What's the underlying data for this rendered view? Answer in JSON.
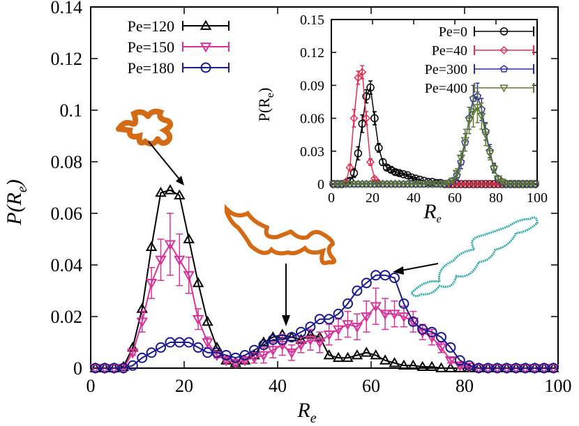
{
  "main": {
    "xlabel": "R",
    "xlabel_sub": "e",
    "ylabel_main": "P(R",
    "ylabel_sub": "e",
    "ylabel_close": ")"
  },
  "inset": {
    "xlabel": "R",
    "xlabel_sub": "e",
    "ylabel_main": "P(R",
    "ylabel_sub": "e",
    "ylabel_close": ")"
  },
  "chart_data": [
    {
      "type": "line",
      "title": "",
      "xlabel": "Re",
      "ylabel": "P(Re)",
      "xlim": [
        0,
        100
      ],
      "ylim": [
        0,
        0.14
      ],
      "xticks": [
        "0",
        "20",
        "40",
        "60",
        "80",
        "100"
      ],
      "yticks": [
        "0",
        "0.02",
        "0.04",
        "0.06",
        "0.08",
        "0.1",
        "0.12",
        "0.14"
      ],
      "legend_position": "top-left",
      "series": [
        {
          "name": "Pe=120",
          "color": "#000000",
          "marker": "triangle-up",
          "x": [
            1,
            3,
            5,
            7,
            9,
            11,
            13,
            15,
            17,
            19,
            21,
            23,
            25,
            27,
            29,
            31,
            33,
            35,
            37,
            39,
            41,
            43,
            45,
            47,
            49,
            51,
            53,
            55,
            57,
            59,
            61,
            63,
            65,
            67,
            69,
            71,
            73,
            75,
            77,
            79,
            81,
            83,
            85,
            87,
            89,
            91,
            93,
            95,
            97,
            99
          ],
          "y": [
            0,
            0,
            0,
            0.0005,
            0.008,
            0.023,
            0.047,
            0.068,
            0.069,
            0.067,
            0.05,
            0.033,
            0.018,
            0.008,
            0.003,
            0.002,
            0.003,
            0.005,
            0.01,
            0.012,
            0.013,
            0.012,
            0.011,
            0.013,
            0.012,
            0.005,
            0.004,
            0.004,
            0.005,
            0.006,
            0.005,
            0.003,
            0.002,
            0.001,
            0.001,
            0.0005,
            0.0005,
            0,
            0,
            0,
            0,
            0,
            0,
            0,
            0,
            0,
            0,
            0,
            0,
            0
          ]
        },
        {
          "name": "Pe=150",
          "color": "#d6339a",
          "marker": "triangle-down",
          "x": [
            1,
            3,
            5,
            7,
            9,
            11,
            13,
            15,
            17,
            19,
            21,
            23,
            25,
            27,
            29,
            31,
            33,
            35,
            37,
            39,
            41,
            43,
            45,
            47,
            49,
            51,
            53,
            55,
            57,
            59,
            61,
            63,
            65,
            67,
            69,
            71,
            73,
            75,
            77,
            79,
            81,
            83,
            85,
            87,
            89,
            91,
            93,
            95,
            97,
            99
          ],
          "y": [
            0,
            0,
            0,
            0,
            0.006,
            0.018,
            0.033,
            0.042,
            0.048,
            0.042,
            0.036,
            0.019,
            0.01,
            0.005,
            0.003,
            0.002,
            0.003,
            0.004,
            0.005,
            0.007,
            0.009,
            0.006,
            0.009,
            0.011,
            0.01,
            0.013,
            0.015,
            0.017,
            0.016,
            0.02,
            0.024,
            0.021,
            0.021,
            0.02,
            0.018,
            0.014,
            0.012,
            0.008,
            0.003,
            0.001,
            0.0005,
            0,
            0,
            0,
            0,
            0,
            0,
            0,
            0,
            0
          ],
          "yerr": [
            0,
            0,
            0,
            0,
            0.001,
            0.004,
            0.006,
            0.008,
            0.012,
            0.01,
            0.007,
            0.004,
            0.002,
            0.001,
            0.001,
            0.001,
            0.001,
            0.002,
            0.003,
            0.003,
            0.004,
            0.003,
            0.003,
            0.004,
            0.004,
            0.004,
            0.004,
            0.005,
            0.005,
            0.006,
            0.007,
            0.006,
            0.005,
            0.004,
            0.004,
            0.003,
            0.003,
            0.002,
            0.001,
            0.001,
            0,
            0,
            0,
            0,
            0,
            0,
            0,
            0,
            0,
            0
          ]
        },
        {
          "name": "Pe=180",
          "color": "#1a1a8c",
          "marker": "circle",
          "x": [
            1,
            3,
            5,
            7,
            9,
            11,
            13,
            15,
            17,
            19,
            21,
            23,
            25,
            27,
            29,
            31,
            33,
            35,
            37,
            39,
            41,
            43,
            45,
            47,
            49,
            51,
            53,
            55,
            57,
            59,
            61,
            63,
            65,
            67,
            69,
            71,
            73,
            75,
            77,
            79,
            81,
            83,
            85,
            87,
            89,
            91,
            93,
            95,
            97,
            99
          ],
          "y": [
            0,
            0,
            0,
            0,
            0.001,
            0.004,
            0.006,
            0.008,
            0.01,
            0.01,
            0.01,
            0.008,
            0.006,
            0.006,
            0.005,
            0.004,
            0.005,
            0.007,
            0.009,
            0.011,
            0.011,
            0.012,
            0.014,
            0.016,
            0.019,
            0.019,
            0.021,
            0.025,
            0.03,
            0.033,
            0.036,
            0.036,
            0.035,
            0.025,
            0.018,
            0.015,
            0.014,
            0.012,
            0.008,
            0.003,
            0.001,
            0,
            0,
            0,
            0,
            0,
            0,
            0,
            0,
            0
          ]
        }
      ]
    },
    {
      "type": "line",
      "title": "",
      "xlabel": "Re",
      "ylabel": "P(Re)",
      "xlim": [
        0,
        100
      ],
      "ylim": [
        0,
        0.15
      ],
      "xticks": [
        "0",
        "20",
        "40",
        "60",
        "80",
        "100"
      ],
      "yticks": [
        "0",
        "0.03",
        "0.06",
        "0.09",
        "0.12",
        "0.15"
      ],
      "legend_position": "top-right",
      "series": [
        {
          "name": "Pe=0",
          "color": "#000000",
          "marker": "circle",
          "x": [
            1,
            3,
            5,
            7,
            9,
            11,
            13,
            15,
            17,
            19,
            21,
            23,
            25,
            27,
            29,
            31,
            33,
            35,
            37,
            39,
            41,
            43,
            45,
            47,
            49,
            51,
            53,
            55,
            57,
            59,
            61,
            63,
            65,
            67,
            69,
            71,
            73,
            75,
            77,
            79,
            81,
            83,
            85,
            87,
            89,
            91,
            93,
            95,
            97,
            99
          ],
          "y": [
            0,
            0,
            0,
            0.001,
            0.003,
            0.01,
            0.028,
            0.055,
            0.08,
            0.088,
            0.06,
            0.033,
            0.02,
            0.015,
            0.013,
            0.011,
            0.01,
            0.009,
            0.008,
            0.006,
            0.005,
            0.004,
            0.003,
            0.002,
            0.002,
            0.001,
            0.001,
            0,
            0,
            0,
            0,
            0,
            0,
            0,
            0,
            0,
            0,
            0,
            0,
            0,
            0,
            0,
            0,
            0,
            0,
            0,
            0,
            0,
            0,
            0
          ],
          "yerr": [
            0,
            0,
            0,
            0,
            0.002,
            0.004,
            0.006,
            0.008,
            0.006,
            0.006,
            0.006,
            0.004,
            0.003,
            0.002,
            0.002,
            0.002,
            0.002,
            0.001,
            0.001,
            0.001,
            0.001,
            0,
            0,
            0,
            0,
            0,
            0,
            0,
            0,
            0,
            0,
            0,
            0,
            0,
            0,
            0,
            0,
            0,
            0,
            0,
            0,
            0,
            0,
            0,
            0,
            0,
            0,
            0,
            0,
            0
          ]
        },
        {
          "name": "Pe=40",
          "color": "#e0304f",
          "marker": "diamond",
          "x": [
            1,
            3,
            5,
            7,
            9,
            11,
            13,
            15,
            17,
            19,
            21,
            23,
            25,
            27,
            29,
            31,
            33,
            35,
            37,
            39,
            41,
            43,
            45,
            47,
            49,
            51,
            53,
            55,
            57,
            59,
            61,
            63,
            65,
            67,
            69,
            71,
            73,
            75,
            77,
            79,
            81,
            83,
            85,
            87,
            89,
            91,
            93,
            95,
            97,
            99
          ],
          "y": [
            0,
            0,
            0,
            0.002,
            0.015,
            0.06,
            0.097,
            0.102,
            0.06,
            0.02,
            0.005,
            0.001,
            0,
            0,
            0,
            0,
            0,
            0,
            0,
            0,
            0,
            0,
            0,
            0,
            0,
            0,
            0,
            0,
            0,
            0,
            0,
            0,
            0,
            0,
            0,
            0,
            0,
            0,
            0,
            0,
            0,
            0,
            0,
            0,
            0,
            0,
            0,
            0,
            0,
            0
          ],
          "yerr": [
            0,
            0,
            0,
            0,
            0.003,
            0.008,
            0.006,
            0.006,
            0.006,
            0.003,
            0.001,
            0,
            0,
            0,
            0,
            0,
            0,
            0,
            0,
            0,
            0,
            0,
            0,
            0,
            0,
            0,
            0,
            0,
            0,
            0,
            0,
            0,
            0,
            0,
            0,
            0,
            0,
            0,
            0,
            0,
            0,
            0,
            0,
            0,
            0,
            0,
            0,
            0,
            0,
            0
          ]
        },
        {
          "name": "Pe=300",
          "color": "#2d2d9e",
          "marker": "pentagon",
          "x": [
            1,
            3,
            5,
            7,
            9,
            11,
            13,
            15,
            17,
            19,
            21,
            23,
            25,
            27,
            29,
            31,
            33,
            35,
            37,
            39,
            41,
            43,
            45,
            47,
            49,
            51,
            53,
            55,
            57,
            59,
            61,
            63,
            65,
            67,
            69,
            71,
            73,
            75,
            77,
            79,
            81,
            83,
            85,
            87,
            89,
            91,
            93,
            95,
            97,
            99
          ],
          "y": [
            0,
            0,
            0,
            0,
            0,
            0,
            0,
            0,
            0,
            0,
            0,
            0,
            0,
            0,
            0,
            0,
            0,
            0,
            0,
            0,
            0,
            0,
            0,
            0,
            0,
            0,
            0,
            0,
            0.001,
            0.003,
            0.008,
            0.02,
            0.038,
            0.06,
            0.078,
            0.08,
            0.068,
            0.048,
            0.03,
            0.015,
            0.005,
            0.002,
            0,
            0,
            0,
            0,
            0,
            0,
            0,
            0
          ],
          "yerr": [
            0,
            0,
            0,
            0,
            0,
            0,
            0,
            0,
            0,
            0,
            0,
            0,
            0,
            0,
            0,
            0,
            0,
            0,
            0,
            0,
            0,
            0,
            0,
            0,
            0,
            0,
            0,
            0,
            0,
            0.002,
            0.004,
            0.006,
            0.008,
            0.01,
            0.012,
            0.012,
            0.01,
            0.008,
            0.006,
            0.004,
            0.002,
            0.001,
            0,
            0,
            0,
            0,
            0,
            0,
            0,
            0
          ]
        },
        {
          "name": "Pe=400",
          "color": "#5e7a32",
          "marker": "triangle-down",
          "x": [
            1,
            3,
            5,
            7,
            9,
            11,
            13,
            15,
            17,
            19,
            21,
            23,
            25,
            27,
            29,
            31,
            33,
            35,
            37,
            39,
            41,
            43,
            45,
            47,
            49,
            51,
            53,
            55,
            57,
            59,
            61,
            63,
            65,
            67,
            69,
            71,
            73,
            75,
            77,
            79,
            81,
            83,
            85,
            87,
            89,
            91,
            93,
            95,
            97,
            99
          ],
          "y": [
            0,
            0,
            0,
            0,
            0,
            0,
            0,
            0,
            0,
            0,
            0,
            0,
            0,
            0,
            0,
            0,
            0,
            0,
            0,
            0,
            0,
            0,
            0,
            0,
            0,
            0,
            0,
            0,
            0.001,
            0.003,
            0.01,
            0.024,
            0.04,
            0.058,
            0.066,
            0.07,
            0.062,
            0.045,
            0.028,
            0.014,
            0.005,
            0.002,
            0,
            0,
            0,
            0,
            0,
            0,
            0,
            0
          ],
          "yerr": [
            0,
            0,
            0,
            0,
            0,
            0,
            0,
            0,
            0,
            0,
            0,
            0,
            0,
            0,
            0,
            0,
            0,
            0,
            0,
            0,
            0,
            0,
            0,
            0,
            0,
            0,
            0,
            0,
            0,
            0.002,
            0.004,
            0.006,
            0.01,
            0.012,
            0.014,
            0.014,
            0.012,
            0.01,
            0.006,
            0.004,
            0.002,
            0.001,
            0,
            0,
            0,
            0,
            0,
            0,
            0,
            0
          ]
        }
      ]
    }
  ]
}
